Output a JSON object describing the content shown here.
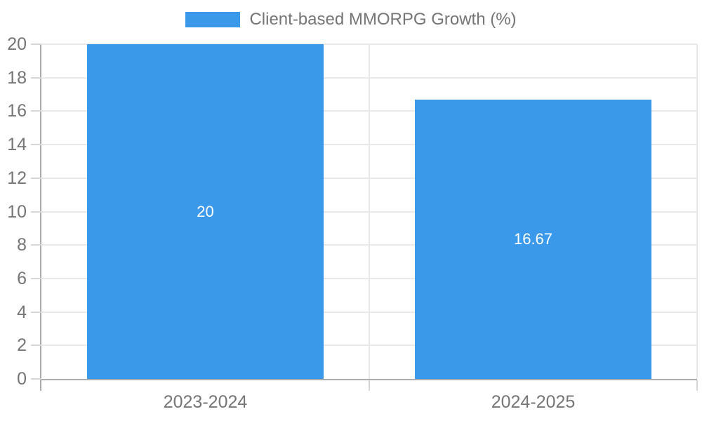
{
  "chart_data": {
    "type": "bar",
    "title": "Client-based MMORPG Growth (%)",
    "categories": [
      "2023-2024",
      "2024-2025"
    ],
    "values": [
      20,
      16.67
    ],
    "bar_labels": [
      "20",
      "16.67"
    ],
    "series": [
      {
        "name": "Client-based MMORPG Growth (%)",
        "values": [
          20,
          16.67
        ]
      }
    ],
    "xlabel": "",
    "ylabel": "",
    "ylim": [
      0,
      20
    ],
    "yticks": [
      0,
      2,
      4,
      6,
      8,
      10,
      12,
      14,
      16,
      18,
      20
    ],
    "grid": true,
    "legend_position": "top-center",
    "colors": {
      "bar": "#3B99EC",
      "grid": "#E9E9E9",
      "axis": "#ABABAB",
      "tick": "#D6D6D6",
      "text": "#757575",
      "bar_label": "#FFFFFF",
      "background": "#FFFFFF"
    }
  }
}
